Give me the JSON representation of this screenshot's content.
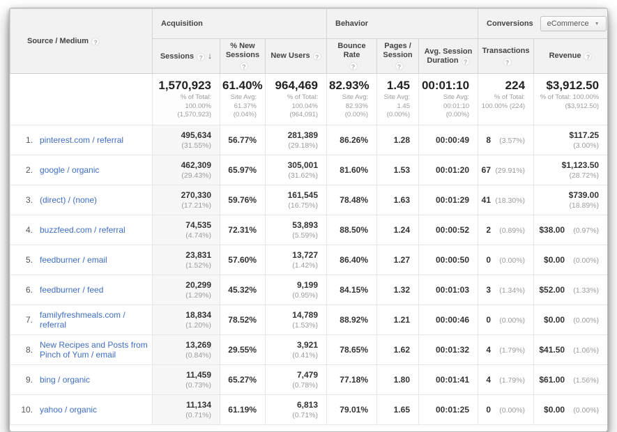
{
  "colors": {
    "link_blue": "#3f6ec2",
    "header_bg": "#f2f2f2",
    "highlight_col_bg": "#f7f7f7",
    "sub_text_gray": "#9c9c9c"
  },
  "icons": {
    "help": "?",
    "sort_desc": "↓",
    "dropdown_arrow": "▼"
  },
  "table": {
    "dimension_header": {
      "label": "Source / Medium"
    },
    "groups": [
      {
        "label": "Acquisition"
      },
      {
        "label": "Behavior"
      },
      {
        "label": "Conversions",
        "dropdown": "eCommerce"
      }
    ],
    "columns": [
      {
        "id": "sessions",
        "label": "Sessions",
        "sorted": true,
        "help_below": false,
        "total": {
          "value": "1,570,923",
          "sub": "% of Total:\n100.00%\n(1,570,923)"
        }
      },
      {
        "id": "new_sessions",
        "label": "% New Sessions",
        "sorted": false,
        "help_below": true,
        "total": {
          "value": "61.40%",
          "sub": "Site Avg:\n61.37%\n(0.04%)"
        }
      },
      {
        "id": "new_users",
        "label": "New Users",
        "sorted": false,
        "help_below": false,
        "total": {
          "value": "964,469",
          "sub": "% of Total:\n100.04% (964,091)"
        }
      },
      {
        "id": "bounce_rate",
        "label": "Bounce Rate",
        "sorted": false,
        "help_below": true,
        "total": {
          "value": "82.93%",
          "sub": "Site Avg:\n82.93%\n(0.00%)"
        }
      },
      {
        "id": "pages_session",
        "label": "Pages / Session",
        "sorted": false,
        "help_below": true,
        "total": {
          "value": "1.45",
          "sub": "Site Avg:\n1.45\n(0.00%)"
        }
      },
      {
        "id": "avg_duration",
        "label": "Avg. Session Duration",
        "sorted": false,
        "help_below": false,
        "total": {
          "value": "00:01:10",
          "sub": "Site Avg:\n00:01:10\n(0.00%)"
        }
      },
      {
        "id": "transactions",
        "label": "Transactions",
        "sorted": false,
        "help_below": true,
        "total": {
          "value": "224",
          "sub": "% of Total:\n100.00% (224)"
        }
      },
      {
        "id": "revenue",
        "label": "Revenue",
        "sorted": false,
        "help_below": false,
        "total": {
          "value": "$3,912.50",
          "sub": "% of Total: 100.00%\n($3,912.50)"
        }
      }
    ],
    "rows": [
      {
        "index": "1.",
        "source": "pinterest.com / referral",
        "cells": {
          "sessions": {
            "v": "495,634",
            "pct": "(31.55%)"
          },
          "new_sessions": {
            "v": "56.77%"
          },
          "new_users": {
            "v": "281,389",
            "pct": "(29.18%)"
          },
          "bounce_rate": {
            "v": "86.26%"
          },
          "pages_session": {
            "v": "1.28"
          },
          "avg_duration": {
            "v": "00:00:49"
          },
          "transactions": {
            "v": "8",
            "pct": "(3.57%)"
          },
          "revenue": {
            "v": "$117.25",
            "pct": "(3.00%)"
          }
        }
      },
      {
        "index": "2.",
        "source": "google / organic",
        "cells": {
          "sessions": {
            "v": "462,309",
            "pct": "(29.43%)"
          },
          "new_sessions": {
            "v": "65.97%"
          },
          "new_users": {
            "v": "305,001",
            "pct": "(31.62%)"
          },
          "bounce_rate": {
            "v": "81.60%"
          },
          "pages_session": {
            "v": "1.53"
          },
          "avg_duration": {
            "v": "00:01:20"
          },
          "transactions": {
            "v": "67",
            "pct": "(29.91%)"
          },
          "revenue": {
            "v": "$1,123.50",
            "pct": "(28.72%)"
          }
        }
      },
      {
        "index": "3.",
        "source": "(direct) / (none)",
        "cells": {
          "sessions": {
            "v": "270,330",
            "pct": "(17.21%)"
          },
          "new_sessions": {
            "v": "59.76%"
          },
          "new_users": {
            "v": "161,545",
            "pct": "(16.75%)"
          },
          "bounce_rate": {
            "v": "78.48%"
          },
          "pages_session": {
            "v": "1.63"
          },
          "avg_duration": {
            "v": "00:01:29"
          },
          "transactions": {
            "v": "41",
            "pct": "(18.30%)"
          },
          "revenue": {
            "v": "$739.00",
            "pct": "(18.89%)"
          }
        }
      },
      {
        "index": "4.",
        "source": "buzzfeed.com / referral",
        "cells": {
          "sessions": {
            "v": "74,535",
            "pct": "(4.74%)"
          },
          "new_sessions": {
            "v": "72.31%"
          },
          "new_users": {
            "v": "53,893",
            "pct": "(5.59%)"
          },
          "bounce_rate": {
            "v": "88.50%"
          },
          "pages_session": {
            "v": "1.24"
          },
          "avg_duration": {
            "v": "00:00:52"
          },
          "transactions": {
            "v": "2",
            "pct": "(0.89%)"
          },
          "revenue": {
            "v": "$38.00",
            "pct": "(0.97%)"
          }
        }
      },
      {
        "index": "5.",
        "source": "feedburner / email",
        "cells": {
          "sessions": {
            "v": "23,831",
            "pct": "(1.52%)"
          },
          "new_sessions": {
            "v": "57.60%"
          },
          "new_users": {
            "v": "13,727",
            "pct": "(1.42%)"
          },
          "bounce_rate": {
            "v": "86.40%"
          },
          "pages_session": {
            "v": "1.27"
          },
          "avg_duration": {
            "v": "00:00:50"
          },
          "transactions": {
            "v": "0",
            "pct": "(0.00%)"
          },
          "revenue": {
            "v": "$0.00",
            "pct": "(0.00%)"
          }
        }
      },
      {
        "index": "6.",
        "source": "feedburner / feed",
        "cells": {
          "sessions": {
            "v": "20,299",
            "pct": "(1.29%)"
          },
          "new_sessions": {
            "v": "45.32%"
          },
          "new_users": {
            "v": "9,199",
            "pct": "(0.95%)"
          },
          "bounce_rate": {
            "v": "84.15%"
          },
          "pages_session": {
            "v": "1.32"
          },
          "avg_duration": {
            "v": "00:01:03"
          },
          "transactions": {
            "v": "3",
            "pct": "(1.34%)"
          },
          "revenue": {
            "v": "$52.00",
            "pct": "(1.33%)"
          }
        }
      },
      {
        "index": "7.",
        "source": "familyfreshmeals.com / referral",
        "cells": {
          "sessions": {
            "v": "18,834",
            "pct": "(1.20%)"
          },
          "new_sessions": {
            "v": "78.52%"
          },
          "new_users": {
            "v": "14,789",
            "pct": "(1.53%)"
          },
          "bounce_rate": {
            "v": "88.92%"
          },
          "pages_session": {
            "v": "1.21"
          },
          "avg_duration": {
            "v": "00:00:46"
          },
          "transactions": {
            "v": "0",
            "pct": "(0.00%)"
          },
          "revenue": {
            "v": "$0.00",
            "pct": "(0.00%)"
          }
        }
      },
      {
        "index": "8.",
        "source": "New Recipes and Posts from Pinch of Yum / email",
        "cells": {
          "sessions": {
            "v": "13,269",
            "pct": "(0.84%)"
          },
          "new_sessions": {
            "v": "29.55%"
          },
          "new_users": {
            "v": "3,921",
            "pct": "(0.41%)"
          },
          "bounce_rate": {
            "v": "78.65%"
          },
          "pages_session": {
            "v": "1.62"
          },
          "avg_duration": {
            "v": "00:01:32"
          },
          "transactions": {
            "v": "4",
            "pct": "(1.79%)"
          },
          "revenue": {
            "v": "$41.50",
            "pct": "(1.06%)"
          }
        }
      },
      {
        "index": "9.",
        "source": "bing / organic",
        "cells": {
          "sessions": {
            "v": "11,459",
            "pct": "(0.73%)"
          },
          "new_sessions": {
            "v": "65.27%"
          },
          "new_users": {
            "v": "7,479",
            "pct": "(0.78%)"
          },
          "bounce_rate": {
            "v": "77.18%"
          },
          "pages_session": {
            "v": "1.80"
          },
          "avg_duration": {
            "v": "00:01:41"
          },
          "transactions": {
            "v": "4",
            "pct": "(1.79%)"
          },
          "revenue": {
            "v": "$61.00",
            "pct": "(1.56%)"
          }
        }
      },
      {
        "index": "10.",
        "source": "yahoo / organic",
        "cells": {
          "sessions": {
            "v": "11,134",
            "pct": "(0.71%)"
          },
          "new_sessions": {
            "v": "61.19%"
          },
          "new_users": {
            "v": "6,813",
            "pct": "(0.71%)"
          },
          "bounce_rate": {
            "v": "79.01%"
          },
          "pages_session": {
            "v": "1.65"
          },
          "avg_duration": {
            "v": "00:01:25"
          },
          "transactions": {
            "v": "0",
            "pct": "(0.00%)"
          },
          "revenue": {
            "v": "$0.00",
            "pct": "(0.00%)"
          }
        }
      }
    ]
  }
}
